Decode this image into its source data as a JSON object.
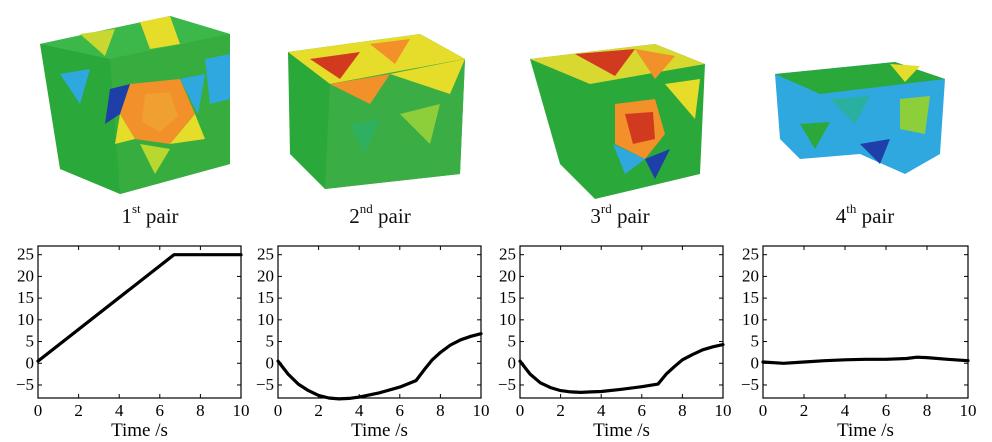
{
  "panels": [
    {
      "num": "1",
      "sup": "st",
      "word": "pair"
    },
    {
      "num": "2",
      "sup": "nd",
      "word": "pair"
    },
    {
      "num": "3",
      "sup": "rd",
      "word": "pair"
    },
    {
      "num": "4",
      "sup": "th",
      "word": "pair"
    }
  ],
  "colors": {
    "blue": "#1f3fa8",
    "cyan": "#2fa8e0",
    "green": "#2aa83a",
    "yellow": "#e6dc2a",
    "orange": "#f2902a",
    "red": "#d23a20",
    "line": "#000000"
  },
  "chart_data": [
    {
      "type": "line",
      "xlabel": "Time /s",
      "ylabel": "",
      "xlim": [
        0,
        10
      ],
      "ylim": [
        -8,
        27
      ],
      "xticks": [
        "0",
        "2",
        "4",
        "6",
        "8",
        "10"
      ],
      "yticks": [
        "-5",
        "0",
        "5",
        "10",
        "15",
        "20",
        "25"
      ],
      "series": [
        {
          "x": [
            0,
            6.7,
            10
          ],
          "y": [
            0.5,
            25,
            25
          ]
        }
      ]
    },
    {
      "type": "line",
      "xlabel": "Time /s",
      "ylabel": "",
      "xlim": [
        0,
        10
      ],
      "ylim": [
        -8,
        27
      ],
      "xticks": [
        "0",
        "2",
        "4",
        "6",
        "8",
        "10"
      ],
      "yticks": [
        "-5",
        "0",
        "5",
        "10",
        "15",
        "20",
        "25"
      ],
      "series": [
        {
          "x": [
            0,
            0.5,
            1,
            1.5,
            2,
            2.5,
            3,
            3.5,
            4,
            5,
            6,
            6.8,
            7.2,
            7.6,
            8,
            8.5,
            9,
            9.5,
            10
          ],
          "y": [
            0.5,
            -2.5,
            -4.8,
            -6.3,
            -7.4,
            -8,
            -8.2,
            -8.1,
            -7.8,
            -6.8,
            -5.5,
            -4,
            -1.5,
            0.8,
            2.5,
            4.2,
            5.4,
            6.2,
            6.8
          ]
        }
      ]
    },
    {
      "type": "line",
      "xlabel": "Time /s",
      "ylabel": "",
      "xlim": [
        0,
        10
      ],
      "ylim": [
        -8,
        27
      ],
      "xticks": [
        "0",
        "2",
        "4",
        "6",
        "8",
        "10"
      ],
      "yticks": [
        "-5",
        "0",
        "5",
        "10",
        "15",
        "20",
        "25"
      ],
      "series": [
        {
          "x": [
            0,
            0.5,
            1,
            1.5,
            2,
            2.5,
            3,
            3.5,
            4,
            5,
            6,
            6.8,
            7.2,
            7.6,
            8,
            8.5,
            9,
            9.5,
            10
          ],
          "y": [
            0.5,
            -2.5,
            -4.5,
            -5.6,
            -6.3,
            -6.6,
            -6.7,
            -6.6,
            -6.5,
            -6,
            -5.4,
            -4.8,
            -2.5,
            -0.8,
            0.8,
            2,
            3.1,
            3.8,
            4.3
          ]
        }
      ]
    },
    {
      "type": "line",
      "xlabel": "Time /s",
      "ylabel": "",
      "xlim": [
        0,
        10
      ],
      "ylim": [
        -8,
        27
      ],
      "xticks": [
        "0",
        "2",
        "4",
        "6",
        "8",
        "10"
      ],
      "yticks": [
        "-5",
        "0",
        "5",
        "10",
        "15",
        "20",
        "25"
      ],
      "series": [
        {
          "x": [
            0,
            1,
            2,
            3,
            4,
            5,
            6,
            7,
            7.5,
            8,
            9,
            10
          ],
          "y": [
            0.3,
            0,
            0.3,
            0.6,
            0.8,
            0.9,
            0.9,
            1.1,
            1.4,
            1.3,
            0.9,
            0.6
          ]
        }
      ]
    }
  ]
}
